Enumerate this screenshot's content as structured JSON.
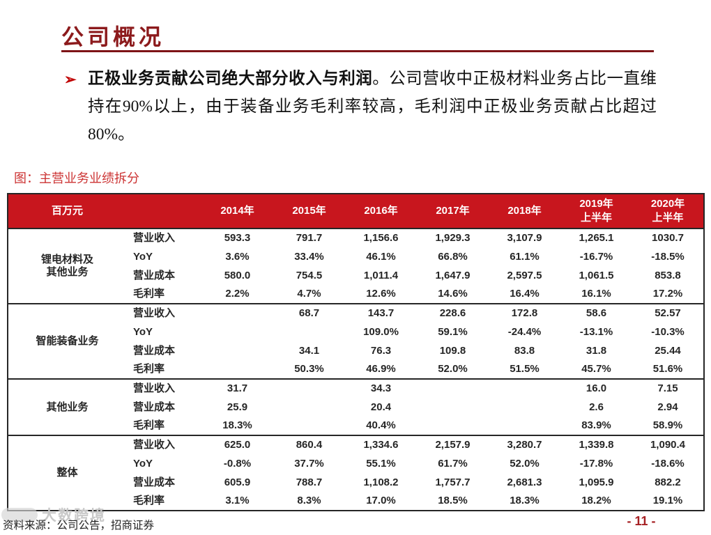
{
  "page": {
    "title": "公司概况",
    "figure_caption": "图：主营业务业绩拆分",
    "source_note": "资料来源：公司公告，招商证券",
    "page_number": "- 11 -",
    "watermark_text": "大数跨境"
  },
  "bullet": {
    "marker": "➢",
    "lead_bold": "正极业务贡献公司绝大部分收入与利润",
    "rest": "。公司营收中正极材料业务占比一直维持在90%以上，由于装备业务毛利率较高，毛利润中正极业务贡献占比超过80%。"
  },
  "colors": {
    "title_maroon": "#8C1A1C",
    "header_red": "#C8161E",
    "caption_red": "#CC3333",
    "page_number_red": "#A62023"
  },
  "chart_data": {
    "type": "table",
    "title": "主营业务业绩拆分",
    "unit_label": "百万元",
    "columns": [
      "2014年",
      "2015年",
      "2016年",
      "2017年",
      "2018年",
      "2019年\n上半年",
      "2020年\n上半年"
    ],
    "groups": [
      {
        "label": "锂电材料及\n其他业务",
        "rows": [
          {
            "metric": "营业收入",
            "values": [
              "593.3",
              "791.7",
              "1,156.6",
              "1,929.3",
              "3,107.9",
              "1,265.1",
              "1030.7"
            ]
          },
          {
            "metric": "YoY",
            "values": [
              "3.6%",
              "33.4%",
              "46.1%",
              "66.8%",
              "61.1%",
              "-16.7%",
              "-18.5%"
            ]
          },
          {
            "metric": "营业成本",
            "values": [
              "580.0",
              "754.5",
              "1,011.4",
              "1,647.9",
              "2,597.5",
              "1,061.5",
              "853.8"
            ]
          },
          {
            "metric": "毛利率",
            "values": [
              "2.2%",
              "4.7%",
              "12.6%",
              "14.6%",
              "16.4%",
              "16.1%",
              "17.2%"
            ]
          }
        ]
      },
      {
        "label": "智能装备业务",
        "rows": [
          {
            "metric": "营业收入",
            "values": [
              "",
              "68.7",
              "143.7",
              "228.6",
              "172.8",
              "58.6",
              "52.57"
            ]
          },
          {
            "metric": "YoY",
            "values": [
              "",
              "",
              "109.0%",
              "59.1%",
              "-24.4%",
              "-13.1%",
              "-10.3%"
            ]
          },
          {
            "metric": "营业成本",
            "values": [
              "",
              "34.1",
              "76.3",
              "109.8",
              "83.8",
              "31.8",
              "25.44"
            ]
          },
          {
            "metric": "毛利率",
            "values": [
              "",
              "50.3%",
              "46.9%",
              "52.0%",
              "51.5%",
              "45.7%",
              "51.6%"
            ]
          }
        ]
      },
      {
        "label": "其他业务",
        "rows": [
          {
            "metric": "营业收入",
            "values": [
              "31.7",
              "",
              "34.3",
              "",
              "",
              "16.0",
              "7.15"
            ]
          },
          {
            "metric": "营业成本",
            "values": [
              "25.9",
              "",
              "20.4",
              "",
              "",
              "2.6",
              "2.94"
            ]
          },
          {
            "metric": "毛利率",
            "values": [
              "18.3%",
              "",
              "40.4%",
              "",
              "",
              "83.9%",
              "58.9%"
            ]
          }
        ]
      },
      {
        "label": "整体",
        "rows": [
          {
            "metric": "营业收入",
            "values": [
              "625.0",
              "860.4",
              "1,334.6",
              "2,157.9",
              "3,280.7",
              "1,339.8",
              "1,090.4"
            ]
          },
          {
            "metric": "YoY",
            "values": [
              "-0.8%",
              "37.7%",
              "55.1%",
              "61.7%",
              "52.0%",
              "-17.8%",
              "-18.6%"
            ]
          },
          {
            "metric": "营业成本",
            "values": [
              "605.9",
              "788.7",
              "1,108.2",
              "1,757.7",
              "2,681.3",
              "1,095.9",
              "882.2"
            ]
          },
          {
            "metric": "毛利率",
            "values": [
              "3.1%",
              "8.3%",
              "17.0%",
              "18.5%",
              "18.3%",
              "18.2%",
              "19.1%"
            ]
          }
        ]
      }
    ]
  }
}
